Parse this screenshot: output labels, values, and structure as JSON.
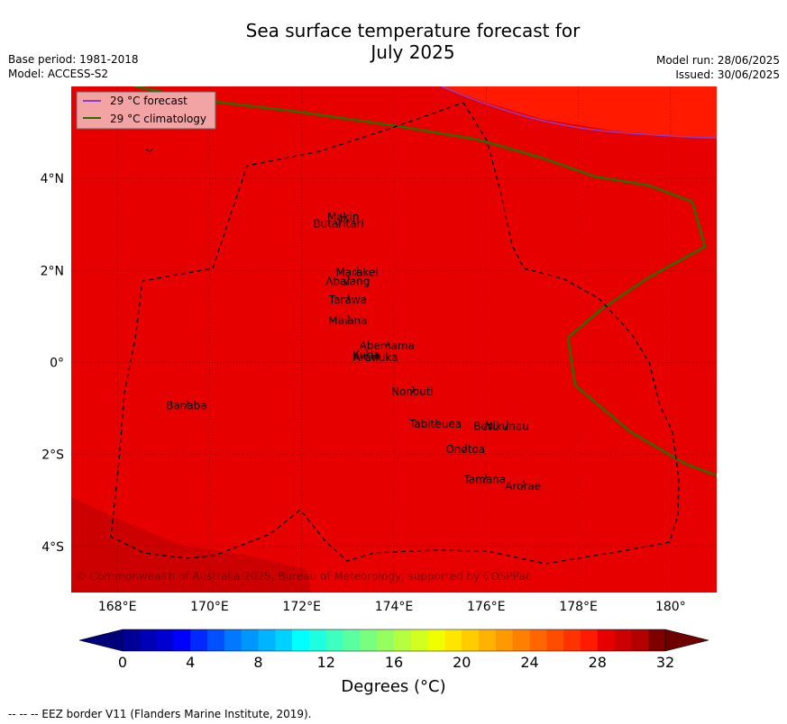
{
  "title": {
    "line1": "Sea surface temperature forecast for",
    "line2": "July 2025"
  },
  "meta": {
    "base_period": "Base period: 1981-2018",
    "model": "Model: ACCESS-S2",
    "model_run": "Model run: 28/06/2025",
    "issued": "Issued: 30/06/2025"
  },
  "legend": {
    "forecast": "29 °C  forecast",
    "climatology": "29 °C  climatology",
    "forecast_color": "#8e3cc8",
    "climatology_color": "#2e6b00"
  },
  "axes": {
    "lon_ticks": [
      "168°E",
      "170°E",
      "172°E",
      "174°E",
      "176°E",
      "178°E",
      "180°"
    ],
    "lat_ticks": [
      "4°N",
      "2°N",
      "0°",
      "2°S",
      "4°S"
    ]
  },
  "islands": [
    {
      "name": "Makin",
      "lon": 172.9,
      "lat": 3.2
    },
    {
      "name": "Butaritari",
      "lon": 172.8,
      "lat": 3.05
    },
    {
      "name": "Marakei",
      "lon": 173.2,
      "lat": 2.0
    },
    {
      "name": "Abaiang",
      "lon": 173.0,
      "lat": 1.8
    },
    {
      "name": "Tarawa",
      "lon": 173.0,
      "lat": 1.4
    },
    {
      "name": "Maiana",
      "lon": 173.0,
      "lat": 0.95
    },
    {
      "name": "Abemama",
      "lon": 173.85,
      "lat": 0.4
    },
    {
      "name": "Kuria",
      "lon": 173.4,
      "lat": 0.2
    },
    {
      "name": "Aranuka",
      "lon": 173.6,
      "lat": 0.15
    },
    {
      "name": "Nonouti",
      "lon": 174.4,
      "lat": -0.6
    },
    {
      "name": "Banaba",
      "lon": 169.5,
      "lat": -0.9
    },
    {
      "name": "Beru",
      "lon": 176.0,
      "lat": -1.35
    },
    {
      "name": "Nikunau",
      "lon": 176.45,
      "lat": -1.35
    },
    {
      "name": "Tabiteuea",
      "lon": 174.9,
      "lat": -1.3
    },
    {
      "name": "Onotoa",
      "lon": 175.55,
      "lat": -1.85
    },
    {
      "name": "Tamana",
      "lon": 175.97,
      "lat": -2.5
    },
    {
      "name": "Arorae",
      "lon": 176.8,
      "lat": -2.65
    }
  ],
  "copyright": "© Commonwealth of Australia 2025, Bureau of Meteorology, supported by COSPPac",
  "colorbar": {
    "min": 0,
    "max": 32,
    "step": 1,
    "tick_labels": [
      "0",
      "4",
      "8",
      "12",
      "16",
      "20",
      "24",
      "28",
      "32"
    ],
    "units": "Degrees (°C)",
    "colors": [
      "#000096",
      "#0000b4",
      "#0000d2",
      "#0000ff",
      "#0028ff",
      "#0050ff",
      "#0078ff",
      "#0096ff",
      "#00b4ff",
      "#00d2ff",
      "#00ffff",
      "#1effe0",
      "#3cffc0",
      "#5aff9f",
      "#78ff80",
      "#96ff60",
      "#b4ff40",
      "#d2ff20",
      "#f0ff00",
      "#ffe600",
      "#ffcc00",
      "#ffb300",
      "#ff9900",
      "#ff8000",
      "#ff6600",
      "#ff4d00",
      "#ff3300",
      "#ff1a00",
      "#e60000",
      "#cc0000",
      "#b30000",
      "#800000"
    ],
    "under_color": "#00007a",
    "over_color": "#6e0000"
  },
  "map_fill": {
    "main": "#e60000",
    "warm": "#ff1a00",
    "cool": "#cc0000"
  },
  "footer": "--  --  -- EEZ border V11 (Flanders Marine Institute, 2019)."
}
